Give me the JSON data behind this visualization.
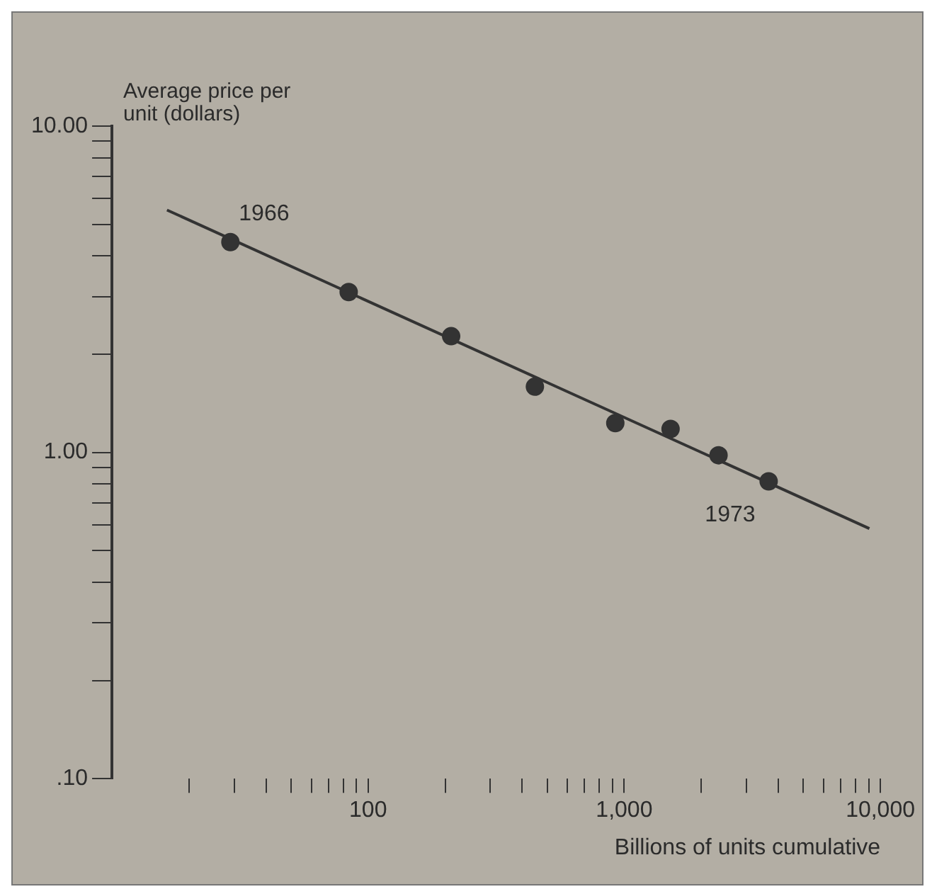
{
  "chart_data": {
    "type": "scatter",
    "xlabel": "Billions of units cumulative",
    "ylabel": "Average price per unit (dollars)",
    "log": "xy",
    "marker": "circle",
    "xlim": [
      10,
      10000
    ],
    "ylim": [
      0.1,
      10
    ],
    "xticks": [
      {
        "value": 20,
        "label": null
      },
      {
        "value": 30,
        "label": null
      },
      {
        "value": 40,
        "label": null
      },
      {
        "value": 50,
        "label": null
      },
      {
        "value": 60,
        "label": null
      },
      {
        "value": 70,
        "label": null
      },
      {
        "value": 80,
        "label": null
      },
      {
        "value": 90,
        "label": null
      },
      100,
      {
        "value": 200,
        "label": null
      },
      {
        "value": 300,
        "label": null
      },
      {
        "value": 400,
        "label": null
      },
      {
        "value": 500,
        "label": null
      },
      {
        "value": 600,
        "label": null
      },
      {
        "value": 700,
        "label": null
      },
      {
        "value": 800,
        "label": null
      },
      {
        "value": 900,
        "label": null
      },
      {
        "value": 1000,
        "label": "1,000"
      },
      {
        "value": 2000,
        "label": null
      },
      {
        "value": 3000,
        "label": null
      },
      {
        "value": 4000,
        "label": null
      },
      {
        "value": 5000,
        "label": null
      },
      {
        "value": 6000,
        "label": null
      },
      {
        "value": 7000,
        "label": null
      },
      {
        "value": 8000,
        "label": null
      },
      {
        "value": 9000,
        "label": null
      },
      {
        "value": 10000,
        "label": "10,000"
      }
    ],
    "yticks": [
      {
        "value": 0.1,
        "label": ".10"
      },
      {
        "value": 0.2,
        "label": null
      },
      {
        "value": 0.3,
        "label": null
      },
      {
        "value": 0.4,
        "label": null
      },
      {
        "value": 0.5,
        "label": null
      },
      {
        "value": 0.6,
        "label": null
      },
      {
        "value": 0.7,
        "label": null
      },
      {
        "value": 0.8,
        "label": null
      },
      {
        "value": 0.9,
        "label": null
      },
      {
        "value": 1,
        "label": "1.00"
      },
      {
        "value": 2,
        "label": null
      },
      {
        "value": 3,
        "label": null
      },
      {
        "value": 4,
        "label": null
      },
      {
        "value": 5,
        "label": null
      },
      {
        "value": 6,
        "label": null
      },
      {
        "value": 7,
        "label": null
      },
      {
        "value": 8,
        "label": null
      },
      {
        "value": 9,
        "label": null
      },
      {
        "value": 10,
        "label": "10.00"
      }
    ],
    "series": [
      {
        "color": "#333333",
        "x": [
          29,
          84,
          211,
          448,
          923,
          1517,
          2335,
          3664
        ],
        "values": [
          4.41,
          3.1,
          2.27,
          1.59,
          1.23,
          1.18,
          0.98,
          0.815
        ]
      },
      {
        "type": "line",
        "marker": "none",
        "color": "#333333",
        "x": [
          16.4,
          9060
        ],
        "values": [
          5.53,
          0.584
        ]
      }
    ],
    "annotations": [
      {
        "text": "1966",
        "x": 29,
        "y": 4.41
      },
      {
        "text": "1973",
        "x": 3664,
        "y": 0.815
      }
    ]
  }
}
